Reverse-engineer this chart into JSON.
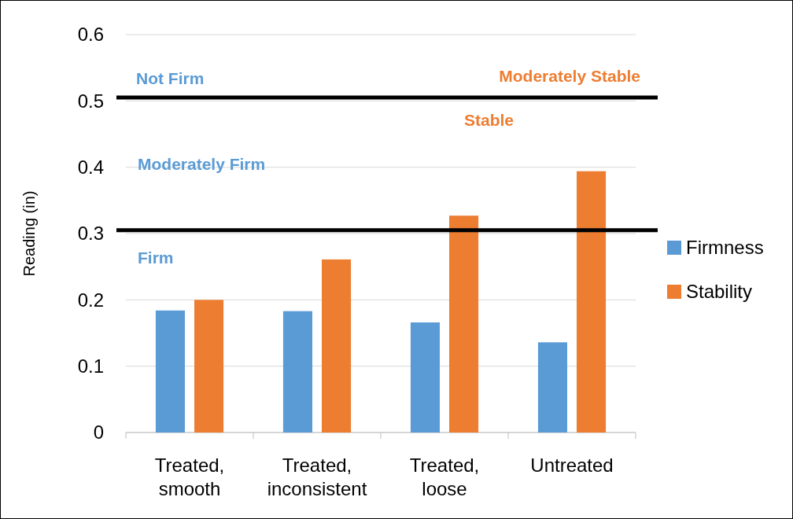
{
  "chart_data": {
    "type": "bar",
    "ylabel": "Reading (in)",
    "categories": [
      "Treated, smooth",
      "Treated, inconsistent",
      "Treated, loose",
      "Untreated"
    ],
    "series": [
      {
        "name": "Firmness",
        "color": "#5b9bd5",
        "values": [
          0.184,
          0.183,
          0.166,
          0.136
        ]
      },
      {
        "name": "Stability",
        "color": "#ed7d31",
        "values": [
          0.2,
          0.261,
          0.327,
          0.394
        ]
      }
    ],
    "ylim": [
      0,
      0.6
    ],
    "yticks": [
      {
        "value": 0,
        "label": "0"
      },
      0.1,
      0.2,
      0.3,
      0.4,
      0.5,
      0.6
    ],
    "grid": "y",
    "legend": "right",
    "ref_lines": [
      {
        "axis": "y",
        "value": 0.505,
        "color": "#000000"
      },
      {
        "axis": "y",
        "value": 0.305,
        "color": "#000000"
      }
    ],
    "annotations": [
      "Not Firm",
      "Moderately Firm",
      "Firm",
      "Moderately Stable",
      "Stable"
    ]
  }
}
